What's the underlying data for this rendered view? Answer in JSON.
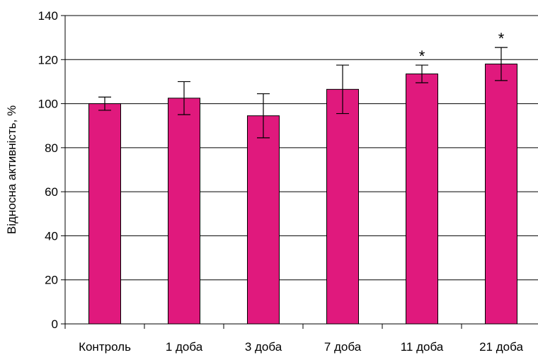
{
  "chart_data": {
    "type": "bar",
    "title": "",
    "xlabel": "",
    "ylabel": "Відносна активність, %",
    "ylim": [
      0,
      140
    ],
    "yticks": [
      0,
      20,
      40,
      60,
      80,
      100,
      120,
      140
    ],
    "grid": true,
    "legend": "none",
    "categories": [
      "Контроль",
      "1 доба",
      "3 доба",
      "7 доба",
      "11 доба",
      "21 доба"
    ],
    "series": [
      {
        "values": [
          100,
          102.5,
          94.5,
          106.5,
          113.5,
          118
        ],
        "error": [
          3,
          7.5,
          10,
          11,
          4,
          7.5
        ],
        "color": "#e0197d"
      }
    ],
    "significance": [
      "",
      "",
      "",
      "",
      "*",
      "*"
    ]
  }
}
